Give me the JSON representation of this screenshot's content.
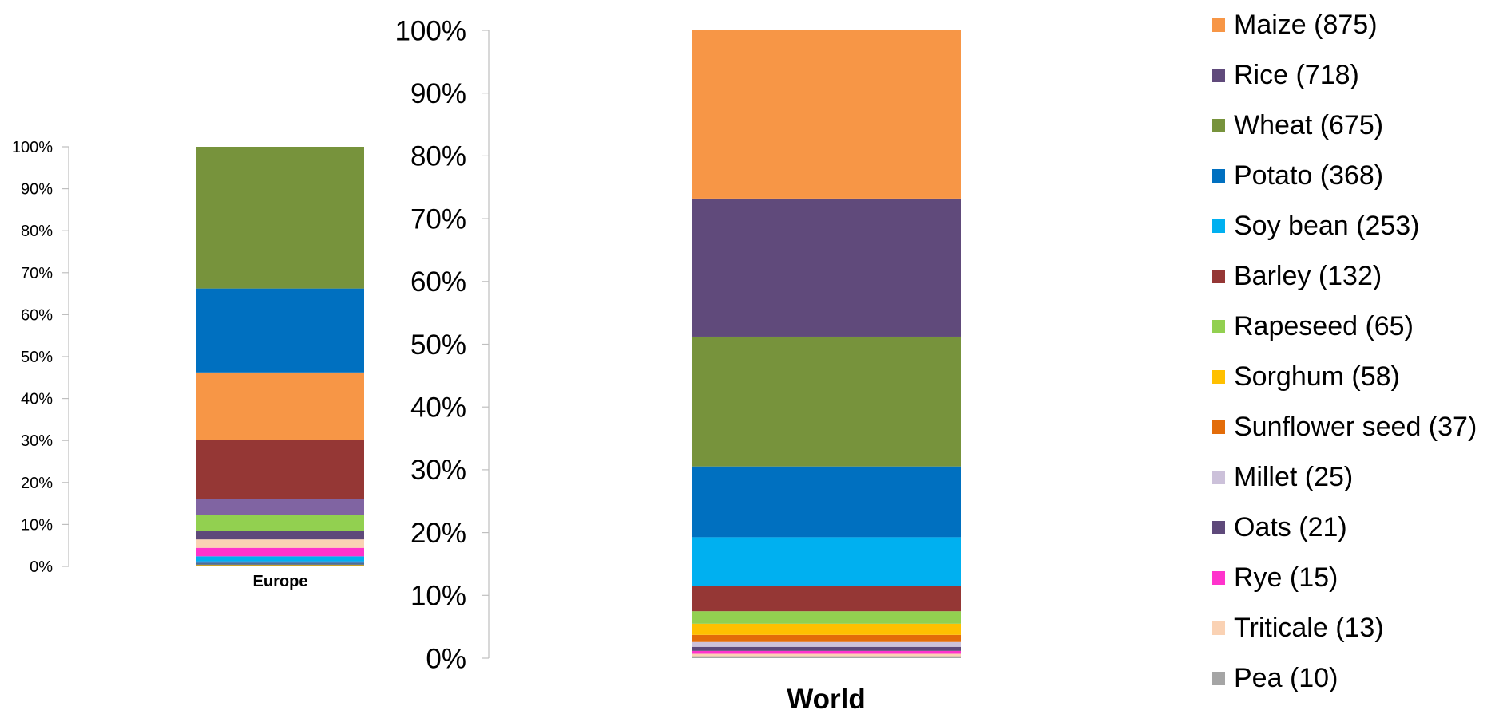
{
  "chart_data": [
    {
      "type": "bar",
      "stacked": "percent",
      "categories": [
        "Europe"
      ],
      "ylim": [
        0,
        100
      ],
      "yticks": [
        "0%",
        "10%",
        "20%",
        "30%",
        "40%",
        "50%",
        "60%",
        "70%",
        "80%",
        "90%",
        "100%"
      ],
      "segments": [
        {
          "color": "#C9A227",
          "value": 0.4
        },
        {
          "color": "#4F6F91",
          "value": 0.4
        },
        {
          "color": "#2D6FB7",
          "value": 0.4
        },
        {
          "color": "#00B0F0",
          "value": 1.2
        },
        {
          "color": "#FF33CC",
          "value": 2.0
        },
        {
          "color": "#FAD2B4",
          "value": 2.0
        },
        {
          "color": "#5E497A",
          "value": 2.0
        },
        {
          "color": "#92D050",
          "value": 3.8
        },
        {
          "color": "#8064A2",
          "value": 3.8
        },
        {
          "color": "#953735",
          "value": 13.9
        },
        {
          "color": "#F79646",
          "value": 16.1
        },
        {
          "color": "#0070C0",
          "value": 19.9
        },
        {
          "color": "#77933C",
          "value": 33.6
        }
      ]
    },
    {
      "type": "bar",
      "stacked": "percent",
      "categories": [
        "World"
      ],
      "ylim": [
        0,
        100
      ],
      "yticks": [
        "0%",
        "10%",
        "20%",
        "30%",
        "40%",
        "50%",
        "60%",
        "70%",
        "80%",
        "90%",
        "100%"
      ],
      "series": [
        {
          "name": "Pea (10)",
          "value": 10,
          "color": "#A5A5A5"
        },
        {
          "name": "Triticale (13)",
          "value": 13,
          "color": "#FAD2B4"
        },
        {
          "name": "Rye (15)",
          "value": 15,
          "color": "#FF33CC"
        },
        {
          "name": "Oats (21)",
          "value": 21,
          "color": "#5E497A"
        },
        {
          "name": "Millet (25)",
          "value": 25,
          "color": "#CCC1DA"
        },
        {
          "name": "Sunflower seed (37)",
          "value": 37,
          "color": "#E36C09"
        },
        {
          "name": "Sorghum (58)",
          "value": 58,
          "color": "#FFC000"
        },
        {
          "name": "Rapeseed (65)",
          "value": 65,
          "color": "#92D050"
        },
        {
          "name": "Barley (132)",
          "value": 132,
          "color": "#953735"
        },
        {
          "name": "Soy bean (253)",
          "value": 253,
          "color": "#00B0F0"
        },
        {
          "name": "Potato (368)",
          "value": 368,
          "color": "#0070C0"
        },
        {
          "name": "Wheat (675)",
          "value": 675,
          "color": "#77933C"
        },
        {
          "name": "Rice (718)",
          "value": 718,
          "color": "#604A7B"
        },
        {
          "name": "Maize (875)",
          "value": 875,
          "color": "#F79646"
        }
      ]
    }
  ],
  "legend": {
    "items": [
      {
        "label": "Maize (875)",
        "color": "#F79646"
      },
      {
        "label": "Rice (718)",
        "color": "#604A7B"
      },
      {
        "label": "Wheat (675)",
        "color": "#77933C"
      },
      {
        "label": "Potato (368)",
        "color": "#0070C0"
      },
      {
        "label": "Soy bean (253)",
        "color": "#00B0F0"
      },
      {
        "label": "Barley (132)",
        "color": "#953735"
      },
      {
        "label": "Rapeseed (65)",
        "color": "#92D050"
      },
      {
        "label": "Sorghum (58)",
        "color": "#FFC000"
      },
      {
        "label": "Sunflower seed (37)",
        "color": "#E36C09"
      },
      {
        "label": "Millet (25)",
        "color": "#CCC1DA"
      },
      {
        "label": "Oats (21)",
        "color": "#5E497A"
      },
      {
        "label": "Rye (15)",
        "color": "#FF33CC"
      },
      {
        "label": "Triticale (13)",
        "color": "#FAD2B4"
      },
      {
        "label": "Pea (10)",
        "color": "#A5A5A5"
      }
    ]
  }
}
